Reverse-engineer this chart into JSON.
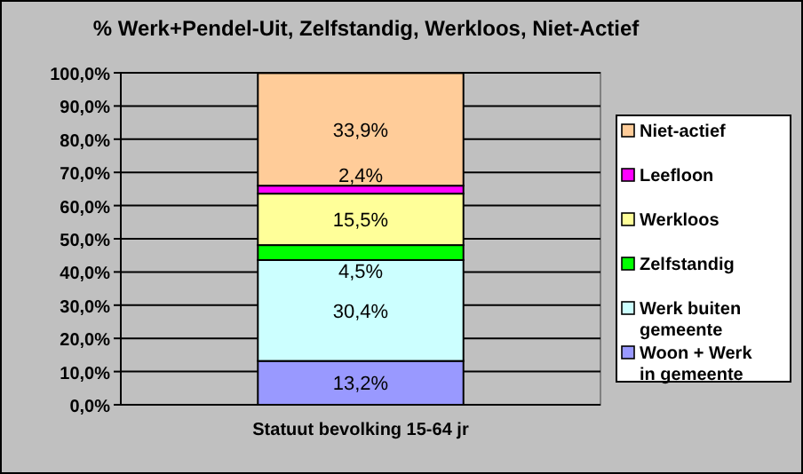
{
  "chart_data": {
    "type": "bar",
    "stacked": true,
    "title": "% Werk+Pendel-Uit, Zelfstandig, Werkloos, Niet-Actief",
    "categories": [
      "Statuut  bevolking 15-64 jr"
    ],
    "series": [
      {
        "name": "Woon + Werk in gemeente",
        "color": "#9999ff",
        "values": [
          13.2
        ],
        "value_labels": [
          "13,2%"
        ]
      },
      {
        "name": "Werk buiten gemeente",
        "color": "#ccffff",
        "values": [
          30.4
        ],
        "value_labels": [
          "30,4%"
        ]
      },
      {
        "name": "Zelfstandig",
        "color": "#00ff00",
        "values": [
          4.5
        ],
        "value_labels": [
          "4,5%"
        ]
      },
      {
        "name": "Werkloos",
        "color": "#ffff99",
        "values": [
          15.5
        ],
        "value_labels": [
          "15,5%"
        ]
      },
      {
        "name": "Leefloon",
        "color": "#ff00ff",
        "values": [
          2.4
        ],
        "value_labels": [
          "2,4%"
        ]
      },
      {
        "name": "Niet-actief",
        "color": "#ffcc99",
        "values": [
          33.9
        ],
        "value_labels": [
          "33,9%"
        ]
      }
    ],
    "ylim": [
      0,
      100
    ],
    "yticks": [
      {
        "value": 0,
        "label": "0,0%"
      },
      {
        "value": 10,
        "label": "10,0%"
      },
      {
        "value": 20,
        "label": "20,0%"
      },
      {
        "value": 30,
        "label": "30,0%"
      },
      {
        "value": 40,
        "label": "40,0%"
      },
      {
        "value": 50,
        "label": "50,0%"
      },
      {
        "value": 60,
        "label": "60,0%"
      },
      {
        "value": 70,
        "label": "70,0%"
      },
      {
        "value": 80,
        "label": "80,0%"
      },
      {
        "value": 90,
        "label": "90,0%"
      },
      {
        "value": 100,
        "label": "100,0%"
      }
    ],
    "grid": "y",
    "legend": "right"
  }
}
